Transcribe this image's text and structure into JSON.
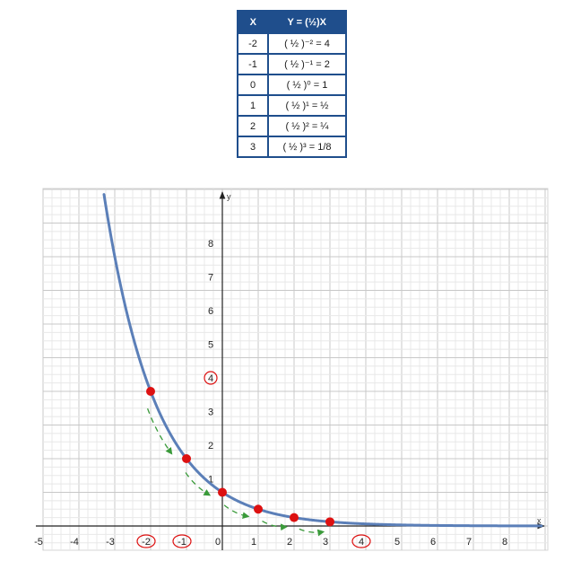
{
  "table": {
    "headers": [
      "X",
      "Y = (½)X"
    ],
    "rows": [
      [
        "-2",
        "( ½ )⁻² = 4"
      ],
      [
        "-1",
        "( ½ )⁻¹ = 2"
      ],
      [
        "0",
        "( ½ )⁰ = 1"
      ],
      [
        "1",
        "( ½ )¹ = ½"
      ],
      [
        "2",
        "( ½ )² = ¼"
      ],
      [
        "3",
        "( ½ )³ = 1/8"
      ]
    ]
  },
  "chart_data": {
    "type": "line",
    "function": "y = (1/2)^x",
    "xlabel": "x",
    "ylabel": "y",
    "xlim": [
      -5,
      9
    ],
    "ylim": [
      -0.5,
      10
    ],
    "x_ticks": [
      "-5",
      "-4",
      "-3",
      "-2",
      "-1",
      "0",
      "1",
      "2",
      "3",
      "4",
      "5",
      "6",
      "7",
      "8"
    ],
    "y_ticks": [
      "1",
      "2",
      "3",
      "4",
      "5",
      "6",
      "7",
      "8"
    ],
    "points": [
      {
        "x": -2,
        "y": 4
      },
      {
        "x": -1,
        "y": 2
      },
      {
        "x": 0,
        "y": 1
      },
      {
        "x": 1,
        "y": 0.5
      },
      {
        "x": 2,
        "y": 0.25
      },
      {
        "x": 3,
        "y": 0.125
      }
    ],
    "highlighted_ticks": [
      "-2",
      "-1",
      "4"
    ],
    "grid": true,
    "colors": {
      "curve": "#5b7fb8",
      "points": "#dd1111",
      "arrows": "#3a9a3a",
      "circle_marks": "#dd1111",
      "table_header": "#1f4e8c"
    }
  }
}
